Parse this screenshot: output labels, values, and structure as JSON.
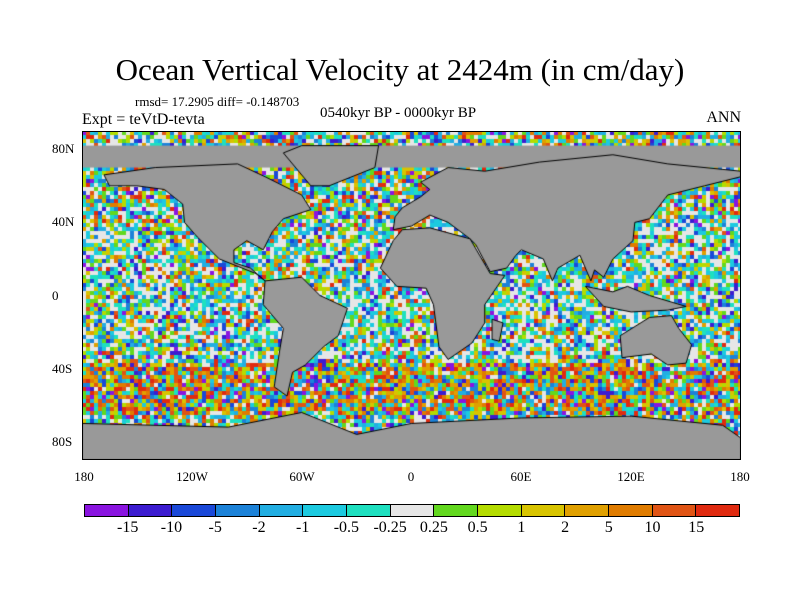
{
  "title": "Ocean Vertical Velocity at 2424m (in cm/day)",
  "stats": "rmsd= 17.2905 diff= -0.148703",
  "experiment": "Expt = teVtD-tevta",
  "period": "0540kyr BP - 0000kyr BP",
  "season": "ANN",
  "lat_labels": [
    "80N",
    "40N",
    "0",
    "40S",
    "80S"
  ],
  "lon_labels": [
    "180",
    "120W",
    "60W",
    "0",
    "60E",
    "120E",
    "180"
  ],
  "colorbar": {
    "levels": [
      "-15",
      "-10",
      "-5",
      "-2",
      "-1",
      "-0.5",
      "-0.25",
      "0.25",
      "0.5",
      "1",
      "2",
      "5",
      "10",
      "15"
    ],
    "colors": [
      "#8a14e0",
      "#3c1cd0",
      "#1a48d8",
      "#1c82d8",
      "#22aee2",
      "#1ccae0",
      "#1ee0c0",
      "#e6e6e6",
      "#62d81e",
      "#b4dc00",
      "#d8c400",
      "#e0a000",
      "#e07c00",
      "#e05414",
      "#e02a10"
    ]
  },
  "land_color": "#999999"
}
